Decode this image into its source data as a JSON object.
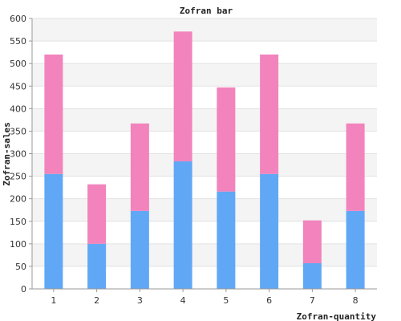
{
  "chart_data": {
    "type": "bar",
    "stacked": true,
    "title": "Zofran bar",
    "xlabel": "Zofran-quantity",
    "ylabel": "Zofran-sales",
    "categories": [
      "1",
      "2",
      "3",
      "4",
      "5",
      "6",
      "7",
      "8"
    ],
    "series": [
      {
        "values": [
          255,
          100,
          173,
          283,
          216,
          255,
          57,
          173
        ],
        "color": "#60a8f5"
      },
      {
        "values": [
          265,
          132,
          194,
          288,
          231,
          265,
          95,
          194
        ],
        "color": "#f283bc"
      }
    ],
    "ylim": [
      0,
      600
    ],
    "yticks": [
      0,
      50,
      100,
      150,
      200,
      250,
      300,
      350,
      400,
      450,
      500,
      550,
      600
    ],
    "grid": true,
    "band_colors": [
      "#f4f4f4",
      "#ffffff"
    ],
    "legend": "none"
  }
}
